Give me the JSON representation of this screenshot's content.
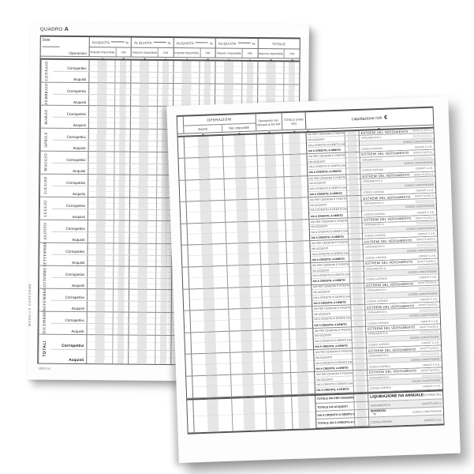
{
  "colors": {
    "paper": "#fdfdfd",
    "grid_strong": "#555555",
    "grid_light": "#aaaaaa",
    "shade_band": "#e6e6e6",
    "text": "#333333"
  },
  "quadro_a": {
    "title_prefix": "QUADRO",
    "title_letter": "A",
    "data_label": "Data",
    "operazioni_label": "Operazioni",
    "aliquota_label": "ALIQUOTA",
    "aliquota_suffix": "%",
    "aliquota_groups": 4,
    "totale_label": "TOTALE",
    "sub_columns": [
      "Importo imponibile",
      "IVA"
    ],
    "months": [
      "GENNAIO",
      "FEBBRAIO",
      "MARZO",
      "APRILE",
      "MAGGIO",
      "GIUGNO",
      "LUGLIO",
      "AGOSTO",
      "SETTEMBRE",
      "OTTOBRE",
      "NOVEMBRE",
      "DICEMBRE"
    ],
    "row_labels": [
      "Corrispettivi",
      "Acquisti"
    ],
    "totals_title": "TOTALI",
    "totals_rows": [
      "Corrispettivi",
      "Acquisti"
    ],
    "side_note": "MODELLO CONFORME",
    "form_code": "13955 (v)"
  },
  "liquidazione": {
    "operazioni_group": "OPERAZIONI",
    "col_esenti": "Esenti",
    "col_non_imponibili": "Non imponibili",
    "col_non_rilevanti": "Operazioni non rilevanti ai fini IVA",
    "col_totale": "TOTALE (netto IVA)",
    "header_right": "Liquidazione IVA",
    "currency_symbol": "€",
    "periods": 12,
    "period_row_labels": [
      "IVA PER CESSIONI E PRESTAZIONI (+), (-)",
      "IVA ACQUISTI",
      "IVA A CREDITO O DEBITO DAL PERIODO PRECEDENTE",
      "IVA A CREDITO, A DEBITO"
    ],
    "versamento_title": "ESTREMI DEL VERSAMENTO",
    "versamento_effettuato": "EFFETTUATO IL",
    "versamento_il": "VERSAMENTO IL",
    "codice_concessione": "CODICE CONCESSIONE",
    "codice_azienda": "CODICE AZIENDA",
    "codice_cab": "CODICE C.A.B.",
    "annual_row_labels": [
      "TOTALE IVA PER CESSIONI O PRESTAZIONI",
      "TOTALE IVA ACQUISTI",
      "IVA A CREDITO O DEBITO DAL PERIODO PRECEDENTE",
      "TOTALE IVA A CREDITO A DEBITO"
    ],
    "annual_title": "LIQUIDAZIONE IVA ANNUALE",
    "annual_subtitle": "ESTREMI DEL VERSAMENTO:",
    "interessi_label": "INTERESSI",
    "interessi_percent": "%"
  }
}
